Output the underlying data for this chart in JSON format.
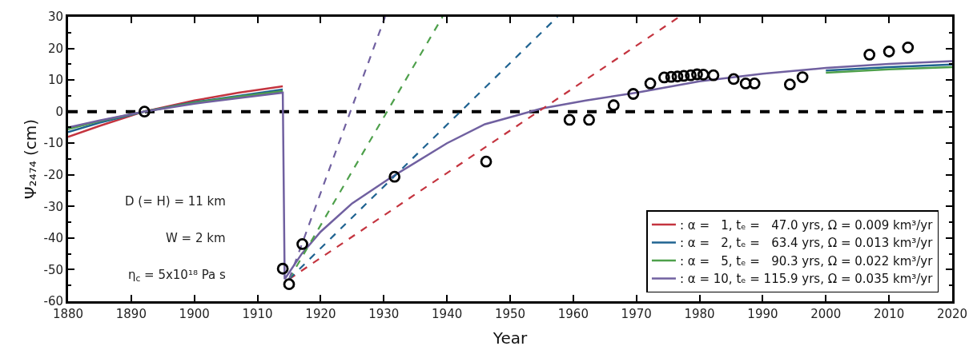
{
  "chart_data": {
    "type": "line",
    "xlabel": "Year",
    "ylabel": "Ψ₂₄₇₄ (cm)",
    "xlim": [
      1880,
      2020
    ],
    "xticks": [
      1880,
      1890,
      1900,
      1910,
      1920,
      1930,
      1940,
      1950,
      1960,
      1970,
      1980,
      1990,
      2000,
      2010,
      2020
    ],
    "ylim": [
      -60,
      30
    ],
    "yticks": [
      -60,
      -50,
      -40,
      -30,
      -20,
      -10,
      0,
      10,
      20,
      30
    ],
    "grid": false,
    "legend": "bottom right",
    "ref_lines": [
      {
        "axis": "y",
        "value": 0,
        "color": "#000000",
        "line_style": "dashed"
      }
    ],
    "annotations": [
      "D (= H) = 11 km",
      "W = 2 km",
      "η$_{c}$ = 5x10¹⁸ Pa s"
    ],
    "series": [
      {
        "name": ": α =   1, tₑ =   47.0 yrs, Ω = 0.009 km³/yr",
        "color": "#c4343f",
        "line_style": "solid",
        "x": [
          1880,
          1885,
          1892,
          1900,
          1907,
          1914
        ],
        "values": [
          -8,
          -4.5,
          0,
          3.5,
          6,
          8
        ]
      },
      {
        "name": ": α =   2, tₑ =   63.4 yrs, Ω = 0.013 km³/yr",
        "color": "#1f6391",
        "line_style": "solid",
        "x": [
          1880,
          1885,
          1892,
          1900,
          1907,
          1914,
          1914.3,
          2000,
          2010,
          2020
        ],
        "values": [
          -6.5,
          -3.5,
          0,
          3,
          5,
          7,
          null,
          13,
          14.1,
          14.9
        ]
      },
      {
        "name": ": α =   5, tₑ =   90.3 yrs, Ω = 0.022 km³/yr",
        "color": "#4ea04b",
        "line_style": "solid",
        "x": [
          1880,
          1885,
          1892,
          1900,
          1907,
          1914,
          1914.3,
          2000,
          2010,
          2020
        ],
        "values": [
          -5.5,
          -3,
          0,
          2.8,
          4.7,
          6.5,
          null,
          12.3,
          13.4,
          14.1
        ]
      },
      {
        "name": ": α = 10, tₑ = 115.9 yrs, Ω = 0.035 km³/yr",
        "color": "#7060a0",
        "line_style": "solid",
        "x": [
          1880,
          1885,
          1892,
          1900,
          1907,
          1914,
          1914.3,
          1917,
          1920,
          1925,
          1931,
          1940,
          1946,
          1955,
          1962,
          1970,
          1980,
          1990,
          2000,
          2010,
          2020
        ],
        "values": [
          -5,
          -2.8,
          0,
          2.5,
          4.3,
          6,
          -53,
          -45,
          -38,
          -29,
          -21,
          -10,
          -4,
          1,
          3.5,
          6,
          9.6,
          12,
          13.8,
          15.1,
          16
        ]
      },
      {
        "color": "#c4343f",
        "line_style": "dashed",
        "x": [
          1915,
          1976.8
        ],
        "values": [
          -53,
          30
        ]
      },
      {
        "color": "#1f6391",
        "line_style": "dashed",
        "x": [
          1915,
          1957.5
        ],
        "values": [
          -53,
          30
        ]
      },
      {
        "color": "#4ea04b",
        "line_style": "dashed",
        "x": [
          1915,
          1939.3
        ],
        "values": [
          -53,
          30
        ]
      },
      {
        "color": "#7060a0",
        "line_style": "dashed",
        "x": [
          1915,
          1930.2
        ],
        "values": [
          -53,
          30
        ]
      },
      {
        "type": "scatter",
        "color": "#000000",
        "marker": "circle",
        "x": [
          1892.1,
          1914.0,
          1915.0,
          1917.1,
          1931.7,
          1946.2,
          1959.4,
          1962.5,
          1966.4,
          1969.5,
          1972.2,
          1974.4,
          1975.5,
          1976.5,
          1977.5,
          1978.6,
          1979.6,
          1980.6,
          1982.2,
          1985.4,
          1987.3,
          1988.7,
          1994.3,
          1996.3,
          2006.9,
          2010.0,
          2013.0
        ],
        "values": [
          0,
          -49.7,
          -54.6,
          -41.9,
          -20.6,
          -15.8,
          -2.6,
          -2.6,
          2.0,
          5.6,
          8.9,
          10.8,
          11.0,
          11.1,
          11.3,
          11.5,
          11.8,
          11.7,
          11.5,
          10.3,
          8.9,
          8.9,
          8.6,
          10.9,
          18.0,
          19.0,
          20.3
        ]
      }
    ]
  }
}
